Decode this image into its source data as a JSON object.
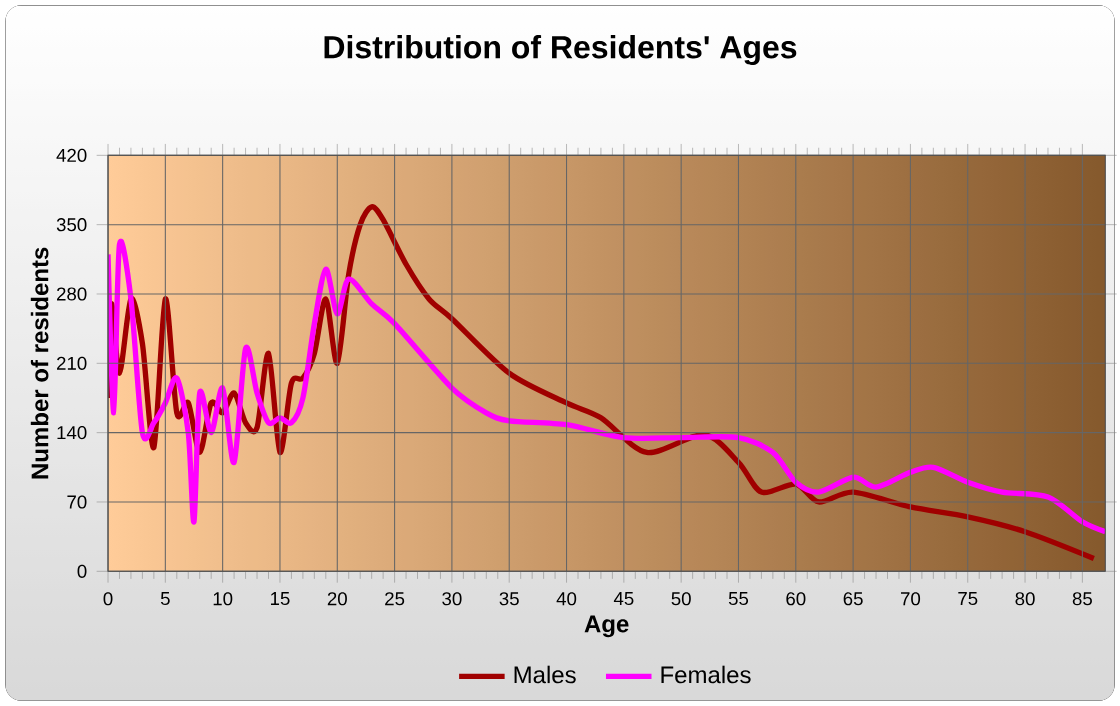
{
  "chart_data": {
    "type": "line",
    "title": "Distribution of Residents' Ages",
    "xlabel": "Age",
    "ylabel": "Number of residents",
    "xlim": [
      0,
      87
    ],
    "xticks": [
      0,
      5,
      10,
      15,
      20,
      25,
      30,
      35,
      40,
      45,
      50,
      55,
      60,
      65,
      70,
      75,
      80,
      85
    ],
    "ylim": [
      0,
      420
    ],
    "yticks": [
      0,
      70,
      140,
      210,
      280,
      350,
      420
    ],
    "grid": true,
    "legend": "bottom",
    "marker": "none",
    "line_style": "solid",
    "series": [
      {
        "name": "Males",
        "color": "#a00000",
        "x": [
          0,
          0.3,
          1,
          2,
          3,
          4,
          5,
          6,
          7,
          8,
          9,
          10,
          11,
          12,
          13,
          14,
          15,
          16,
          17,
          18,
          19,
          20,
          21,
          22,
          23,
          24,
          26,
          28,
          30,
          35,
          40,
          43,
          47,
          52,
          55,
          57,
          60,
          62,
          65,
          70,
          75,
          80,
          86
        ],
        "values": [
          175,
          270,
          200,
          275,
          230,
          125,
          275,
          160,
          170,
          120,
          170,
          160,
          180,
          150,
          145,
          220,
          120,
          190,
          195,
          220,
          275,
          210,
          300,
          350,
          368,
          355,
          310,
          275,
          255,
          200,
          170,
          155,
          120,
          138,
          110,
          80,
          88,
          70,
          80,
          65,
          55,
          40,
          13
        ]
      },
      {
        "name": "Females",
        "color": "#ff00ff",
        "x": [
          0,
          0.5,
          1,
          2,
          3,
          4,
          5,
          6,
          7,
          7.5,
          8,
          9,
          10,
          11,
          12,
          13,
          14,
          15,
          16,
          17,
          18,
          19,
          20,
          21,
          23,
          25,
          30,
          33,
          35,
          40,
          45,
          50,
          55,
          58,
          60,
          62,
          65,
          67,
          70,
          72,
          75,
          78,
          82,
          85,
          87
        ],
        "values": [
          320,
          160,
          330,
          275,
          140,
          150,
          170,
          195,
          140,
          50,
          180,
          140,
          185,
          110,
          225,
          180,
          150,
          155,
          150,
          175,
          250,
          305,
          260,
          295,
          270,
          250,
          185,
          160,
          152,
          148,
          135,
          135,
          135,
          120,
          90,
          80,
          95,
          85,
          100,
          105,
          90,
          80,
          75,
          50,
          40
        ]
      }
    ]
  }
}
